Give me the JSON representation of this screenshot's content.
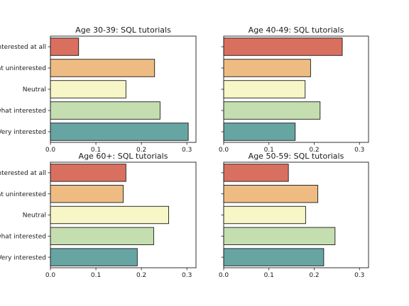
{
  "chart_data": [
    {
      "type": "bar",
      "orientation": "horizontal",
      "title": "Age 30-39: SQL tutorials",
      "categories": [
        "Not interested at all",
        "Somewhat uninterested",
        "Neutral",
        "Somewhat interested",
        "Very interested"
      ],
      "values": [
        0.062,
        0.229,
        0.166,
        0.241,
        0.303
      ],
      "xlim": [
        0,
        0.32
      ],
      "xticks": [
        "0.0",
        "0.1",
        "0.2",
        "0.3"
      ]
    },
    {
      "type": "bar",
      "orientation": "horizontal",
      "title": "Age 40-49: SQL tutorials",
      "categories": [
        "Not interested at all",
        "Somewhat uninterested",
        "Neutral",
        "Somewhat interested",
        "Very interested"
      ],
      "values": [
        0.262,
        0.192,
        0.18,
        0.213,
        0.158
      ],
      "xlim": [
        0,
        0.32
      ],
      "xticks": [
        "0.0",
        "0.1",
        "0.2",
        "0.3"
      ]
    },
    {
      "type": "bar",
      "orientation": "horizontal",
      "title": "Age 60+: SQL tutorials",
      "categories": [
        "Not interested at all",
        "Somewhat uninterested",
        "Neutral",
        "Somewhat interested",
        "Very interested"
      ],
      "values": [
        0.166,
        0.16,
        0.26,
        0.227,
        0.191
      ],
      "xlim": [
        0,
        0.32
      ],
      "xticks": [
        "0.0",
        "0.1",
        "0.2",
        "0.3"
      ]
    },
    {
      "type": "bar",
      "orientation": "horizontal",
      "title": "Age 50-59: SQL tutorials",
      "categories": [
        "Not interested at all",
        "Somewhat uninterested",
        "Neutral",
        "Somewhat interested",
        "Very interested"
      ],
      "values": [
        0.143,
        0.208,
        0.181,
        0.246,
        0.221
      ],
      "xlim": [
        0,
        0.32
      ],
      "xticks": [
        "0.0",
        "0.1",
        "0.2",
        "0.3"
      ]
    }
  ],
  "bar_colors": [
    "#d9705f",
    "#eebc82",
    "#f7f6c6",
    "#c5deb0",
    "#67a5a3"
  ],
  "bar_edge_color": "#1a1a1a"
}
